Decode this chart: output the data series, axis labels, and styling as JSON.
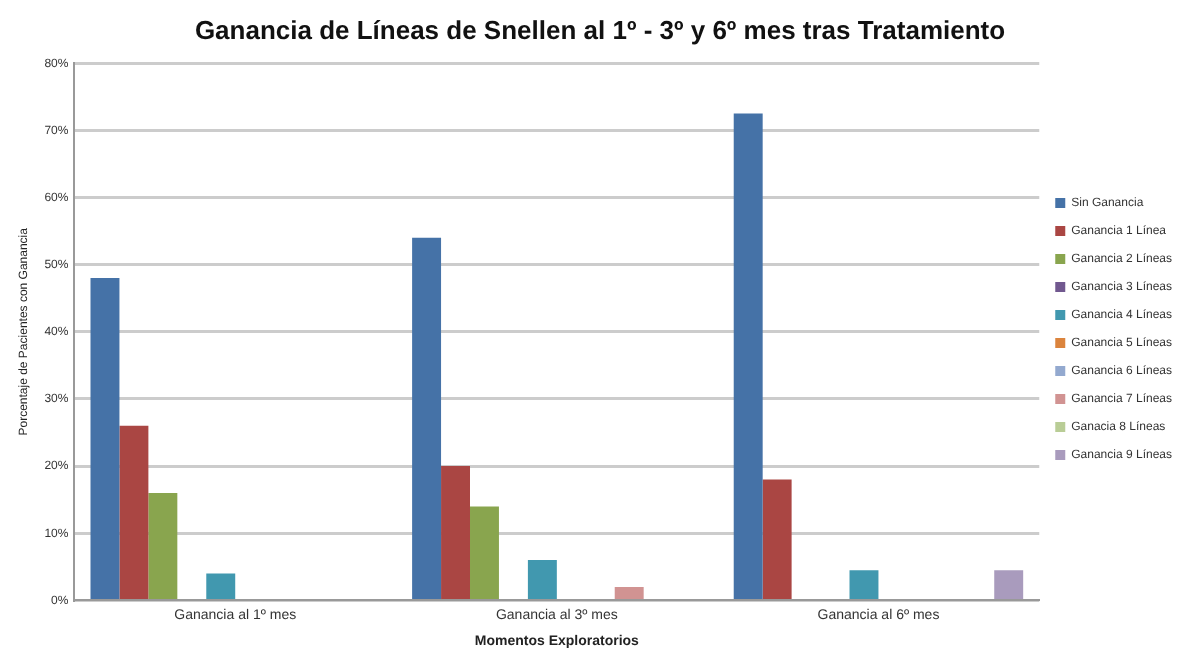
{
  "chart_data": {
    "type": "bar",
    "title": "Ganancia de Líneas de Snellen al 1º - 3º y 6º mes tras Tratamiento",
    "xlabel": "Momentos Exploratorios",
    "ylabel": "Porcentaje de Pacientes con Ganancia",
    "categories": [
      "Ganancia al 1º mes",
      "Ganancia al 3º mes",
      "Ganancia al 6º mes"
    ],
    "series": [
      {
        "name": "Sin Ganancia",
        "color": "#4572a7",
        "values": [
          48,
          54,
          72.5
        ]
      },
      {
        "name": "Ganancia 1 Línea",
        "color": "#aa4643",
        "values": [
          26,
          20,
          18
        ]
      },
      {
        "name": "Ganancia 2 Líneas",
        "color": "#89a54e",
        "values": [
          16,
          14,
          null
        ]
      },
      {
        "name": "Ganancia 3 Líneas",
        "color": "#71588f",
        "values": [
          null,
          null,
          null
        ]
      },
      {
        "name": "Ganancia 4 Líneas",
        "color": "#4198af",
        "values": [
          4,
          6,
          4.5
        ]
      },
      {
        "name": "Ganancia 5 Líneas",
        "color": "#db843d",
        "values": [
          null,
          null,
          null
        ]
      },
      {
        "name": "Ganancia 6 Líneas",
        "color": "#93a9cf",
        "values": [
          null,
          null,
          null
        ]
      },
      {
        "name": "Ganancia 7 Líneas",
        "color": "#d19392",
        "values": [
          null,
          2,
          null
        ]
      },
      {
        "name": "Ganacia 8 Líneas",
        "color": "#b9cd96",
        "values": [
          null,
          null,
          null
        ]
      },
      {
        "name": "Ganancia 9 Líneas",
        "color": "#a99bbd",
        "values": [
          null,
          null,
          4.5
        ]
      }
    ],
    "ylim": [
      0,
      80
    ],
    "yticks": [
      {
        "value": 0,
        "label": "0%"
      },
      {
        "value": 10,
        "label": "10%"
      },
      {
        "value": 20,
        "label": "20%"
      },
      {
        "value": 30,
        "label": "30%"
      },
      {
        "value": 40,
        "label": "40%"
      },
      {
        "value": 50,
        "label": "50%"
      },
      {
        "value": 60,
        "label": "60%"
      },
      {
        "value": 70,
        "label": "70%"
      },
      {
        "value": 80,
        "label": "80%"
      }
    ],
    "grid": "y",
    "legend": "right"
  }
}
